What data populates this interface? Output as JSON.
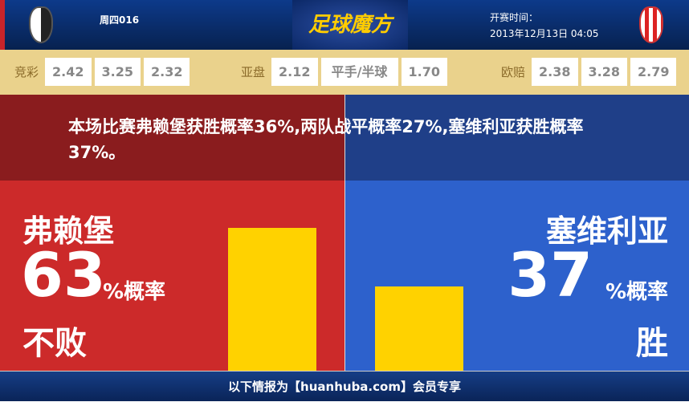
{
  "header": {
    "match_no": "周四016",
    "brand": "足球魔方",
    "kickoff_label": "开赛时间：",
    "kickoff_time": "2013年12月13日 04:05",
    "home_logo": "freiburg-crest",
    "away_logo": "sevilla-crest"
  },
  "odds": {
    "jingcai": {
      "label": "竞彩",
      "values": [
        "2.42",
        "3.25",
        "2.32"
      ]
    },
    "yapan": {
      "label": "亚盘",
      "values": [
        "2.12",
        "平手/半球",
        "1.70"
      ]
    },
    "oupei": {
      "label": "欧赔",
      "values": [
        "2.38",
        "3.28",
        "2.79"
      ]
    }
  },
  "summary": "本场比赛弗赖堡获胜概率36%,两队战平概率27%,塞维利亚获胜概率37%。",
  "home": {
    "name": "弗赖堡",
    "value": "63",
    "pct_label": "%概率",
    "result": "不败",
    "bar_percent": 63,
    "color": "#cc2a2a"
  },
  "away": {
    "name": "塞维利亚",
    "value": "37",
    "pct_label": "%概率",
    "result": "胜",
    "bar_percent": 37,
    "color": "#2d61cc"
  },
  "bar_color": "#ffd200",
  "footer": "以下情报为【huanhuba.com】会员专享"
}
